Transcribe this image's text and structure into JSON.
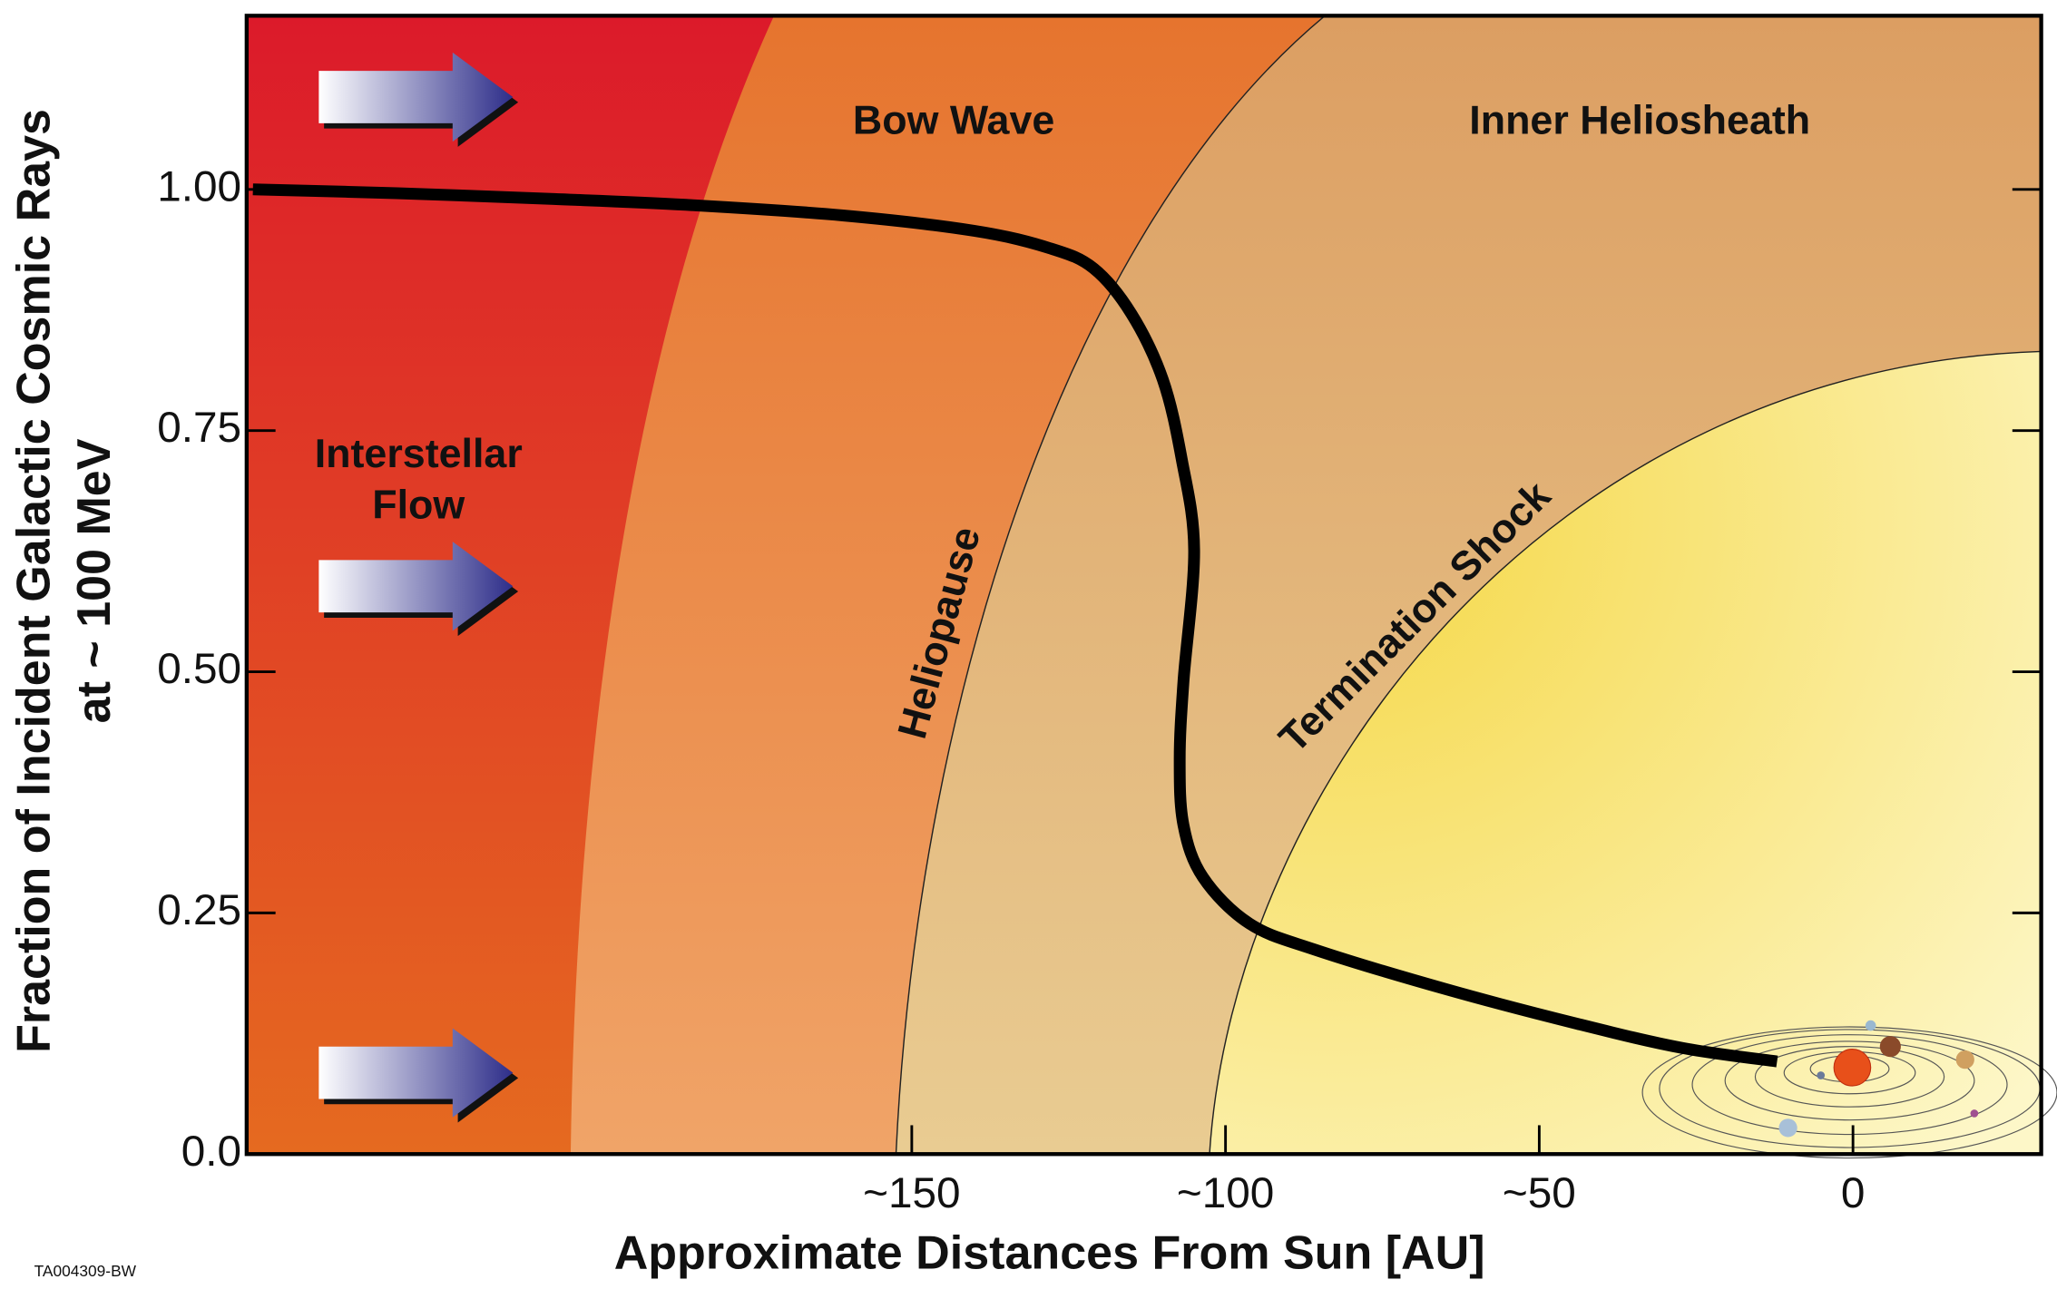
{
  "chart_data": {
    "type": "line",
    "x_label": "Approximate Distances From Sun [AU]",
    "y_label": [
      "Fraction of Incident Galactic Cosmic Rays",
      "at ~ 100 MeV"
    ],
    "annotations": [
      "Interstellar",
      "Flow",
      "Bow Wave",
      "Inner Heliosheath",
      "Heliopause",
      "Termination Shock"
    ],
    "footnote": "TA004309-BW",
    "x": [
      -255,
      -232,
      -207,
      -186,
      -161,
      -140,
      -128,
      -121,
      -115,
      -110,
      -107,
      -105,
      -106.7,
      -107.3,
      -106.7,
      -103.6,
      -96.2,
      -85.8,
      -64.9,
      -43.9,
      -27.2,
      -12.1
    ],
    "values": [
      1.0,
      0.996,
      0.99,
      0.984,
      0.973,
      0.957,
      0.939,
      0.918,
      0.871,
      0.803,
      0.721,
      0.626,
      0.49,
      0.409,
      0.341,
      0.287,
      0.239,
      0.212,
      0.171,
      0.135,
      0.11,
      0.096
    ],
    "color": "#000000",
    "xlim": [
      -256,
      30
    ],
    "ylim": [
      0,
      1.18
    ],
    "xticks": [
      {
        "value": -150,
        "label": "~150"
      },
      {
        "value": -100,
        "label": "~100"
      },
      {
        "value": -50,
        "label": "~50"
      },
      0
    ],
    "yticks": [
      {
        "value": 0,
        "label": "0.0"
      },
      0.25,
      {
        "value": 0.5,
        "label": "0.50"
      },
      {
        "value": 0.75,
        "label": "0.75"
      },
      {
        "value": 1,
        "label": "1.00"
      }
    ]
  }
}
